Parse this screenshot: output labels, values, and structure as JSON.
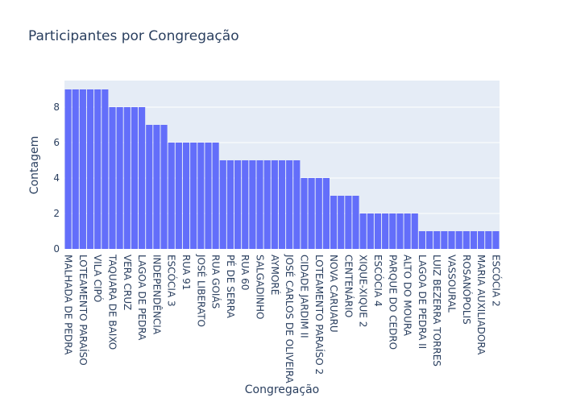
{
  "chart_data": {
    "type": "bar",
    "title": "Participantes por Congregação",
    "x_label": "Congregação",
    "y_label": "Contagem",
    "categories": [
      "MALHADA DE PEDRA",
      null,
      "LOTEAMENTO PARAÍSO",
      null,
      "VILA CIPÓ",
      null,
      "TAQUARA DE BAIXO",
      null,
      "VERA CRUZ",
      null,
      "LAGOA DE PEDRA",
      null,
      "INDEPENDÊNCIA",
      null,
      "ESCÓCIA 3",
      null,
      "RUA 91",
      null,
      "JOSÉ LIBERATO",
      null,
      "RUA GOIÁS",
      null,
      "PÉ DE SERRA",
      null,
      "RUA 60",
      null,
      "SALGADINHO",
      null,
      "AYMORÉ",
      null,
      "JOSÉ CARLOS DE OLIVEIRA",
      null,
      "CIDADE JARDIM II",
      null,
      "LOTEAMENTO PARAÍSO 2",
      null,
      "NOVA CARUARU",
      null,
      "CENTENÁRIO",
      null,
      "XIQUE-XIQUE 2",
      null,
      "ESCÓCIA 4",
      null,
      "PARQUE DO CEDRO",
      null,
      "ALTO DO MOURA",
      null,
      "LAGOA DE PEDRA II",
      null,
      "LUIZ BEZERRA TORRES",
      null,
      "VASSOURAL",
      null,
      "ROSANÓPOLIS",
      null,
      "MARIA AUXILIADORA",
      null,
      "ESCÓCIA 2"
    ],
    "values": [
      9,
      9,
      9,
      9,
      9,
      9,
      8,
      8,
      8,
      8,
      8,
      7,
      7,
      7,
      6,
      6,
      6,
      6,
      6,
      6,
      6,
      5,
      5,
      5,
      5,
      5,
      5,
      5,
      5,
      5,
      5,
      5,
      4,
      4,
      4,
      4,
      3,
      3,
      3,
      3,
      2,
      2,
      2,
      2,
      2,
      2,
      2,
      2,
      1,
      1,
      1,
      1,
      1,
      1,
      1,
      1,
      1,
      1,
      1
    ],
    "color": "#636efa",
    "ylim": [
      0,
      9.5
    ],
    "yticks": [
      0,
      2,
      4,
      6,
      8
    ],
    "grid": true
  }
}
